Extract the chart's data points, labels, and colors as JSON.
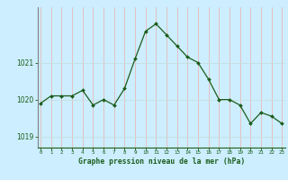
{
  "x": [
    0,
    1,
    2,
    3,
    4,
    5,
    6,
    7,
    8,
    9,
    10,
    11,
    12,
    13,
    14,
    15,
    16,
    17,
    18,
    19,
    20,
    21,
    22,
    23
  ],
  "y": [
    1019.9,
    1020.1,
    1020.1,
    1020.1,
    1020.25,
    1019.85,
    1020.0,
    1019.85,
    1020.3,
    1021.1,
    1021.85,
    1022.05,
    1021.75,
    1021.45,
    1021.15,
    1021.0,
    1020.55,
    1020.0,
    1020.0,
    1019.85,
    1019.35,
    1019.65,
    1019.55,
    1019.35
  ],
  "bg_color": "#cceeff",
  "line_color": "#1a5c1a",
  "marker_color": "#1a5c1a",
  "vgrid_color": "#e8b8b8",
  "hgrid_color": "#c8dede",
  "border_left_color": "#808080",
  "border_bottom_color": "#1a5c1a",
  "xlabel": "Graphe pression niveau de la mer (hPa)",
  "xlabel_color": "#1a5c1a",
  "tick_color": "#1a5c1a",
  "yticks": [
    1019,
    1020,
    1021
  ],
  "ylim": [
    1018.7,
    1022.5
  ],
  "xlim": [
    -0.3,
    23.3
  ],
  "xtick_labels": [
    "0",
    "1",
    "2",
    "3",
    "4",
    "5",
    "6",
    "7",
    "8",
    "9",
    "10",
    "11",
    "12",
    "13",
    "14",
    "15",
    "16",
    "17",
    "18",
    "19",
    "20",
    "21",
    "22",
    "23"
  ]
}
